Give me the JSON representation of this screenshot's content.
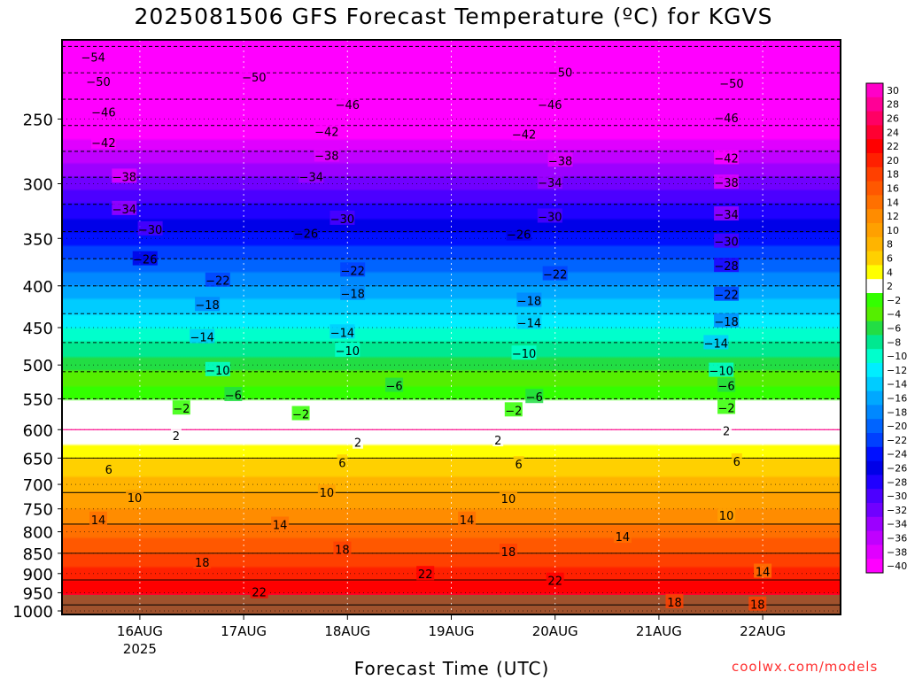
{
  "title": "2025081506 GFS Forecast Temperature (ºC) for KGVS",
  "xlabel": "Forecast Time (UTC)",
  "credit": "coolwx.com/models",
  "chart_data": {
    "type": "heatmap",
    "title": "2025081506 GFS Forecast Temperature (ºC) for KGVS",
    "xlabel": "Forecast Time (UTC)",
    "ylabel": "",
    "x_ticks": [
      {
        "day": 16,
        "label": "16AUG",
        "sublabel": "2025"
      },
      {
        "day": 17,
        "label": "17AUG"
      },
      {
        "day": 18,
        "label": "18AUG"
      },
      {
        "day": 19,
        "label": "19AUG"
      },
      {
        "day": 20,
        "label": "20AUG"
      },
      {
        "day": 21,
        "label": "21AUG"
      },
      {
        "day": 22,
        "label": "22AUG"
      }
    ],
    "x_range_days": [
      15.25,
      22.75
    ],
    "y_scale": "log",
    "y_range_hpa": [
      1010,
      200
    ],
    "y_ticks": [
      250,
      300,
      350,
      400,
      450,
      500,
      550,
      600,
      650,
      700,
      750,
      800,
      850,
      900,
      950,
      1000
    ],
    "colorbar": {
      "labels": [
        "30",
        "28",
        "26",
        "24",
        "22",
        "20",
        "18",
        "16",
        "14",
        "12",
        "10",
        "8",
        "6",
        "4",
        "2",
        "-2",
        "-4",
        "-6",
        "-8",
        "-10",
        "-12",
        "-14",
        "-16",
        "-18",
        "-20",
        "-22",
        "-24",
        "-26",
        "-28",
        "-30",
        "-32",
        "-34",
        "-36",
        "-38",
        "-40"
      ],
      "colors": [
        "#ff00c8",
        "#ff0096",
        "#ff0064",
        "#ff0032",
        "#ff0000",
        "#ff2000",
        "#ff4000",
        "#ff5800",
        "#ff7000",
        "#ff8c00",
        "#ffa000",
        "#ffb400",
        "#ffd000",
        "#ffff00",
        "#ffffff",
        "#33ff00",
        "#55ee00",
        "#22dd44",
        "#00e890",
        "#00ffcc",
        "#00eeff",
        "#00ccff",
        "#00a8ff",
        "#0088ff",
        "#0064ff",
        "#0040ff",
        "#0010ff",
        "#0000e8",
        "#2000ff",
        "#4c00ff",
        "#7000ff",
        "#9c00ff",
        "#c000ff",
        "#e000ff",
        "#ff00ff"
      ]
    },
    "temperature_profile": [
      {
        "hpa": 1000,
        "t": 27
      },
      {
        "hpa": 950,
        "t": 24
      },
      {
        "hpa": 900,
        "t": 21
      },
      {
        "hpa": 850,
        "t": 18
      },
      {
        "hpa": 800,
        "t": 15
      },
      {
        "hpa": 750,
        "t": 12
      },
      {
        "hpa": 700,
        "t": 9
      },
      {
        "hpa": 650,
        "t": 6
      },
      {
        "hpa": 600,
        "t": 2
      },
      {
        "hpa": 550,
        "t": -2
      },
      {
        "hpa": 500,
        "t": -7
      },
      {
        "hpa": 450,
        "t": -12
      },
      {
        "hpa": 400,
        "t": -18
      },
      {
        "hpa": 350,
        "t": -25
      },
      {
        "hpa": 300,
        "t": -33
      },
      {
        "hpa": 250,
        "t": -43
      },
      {
        "hpa": 200,
        "t": -55
      }
    ],
    "contour_labels": [
      {
        "t": -54,
        "day": 15.55,
        "hpa": 210
      },
      {
        "t": -50,
        "day": 15.6,
        "hpa": 225
      },
      {
        "t": -50,
        "day": 17.1,
        "hpa": 222
      },
      {
        "t": -50,
        "day": 20.05,
        "hpa": 219
      },
      {
        "t": -50,
        "day": 21.7,
        "hpa": 226
      },
      {
        "t": -46,
        "day": 15.65,
        "hpa": 245
      },
      {
        "t": -46,
        "day": 18.0,
        "hpa": 240
      },
      {
        "t": -46,
        "day": 19.95,
        "hpa": 240
      },
      {
        "t": -46,
        "day": 21.65,
        "hpa": 249
      },
      {
        "t": -42,
        "day": 15.65,
        "hpa": 267
      },
      {
        "t": -42,
        "day": 17.8,
        "hpa": 259
      },
      {
        "t": -42,
        "day": 19.7,
        "hpa": 261
      },
      {
        "t": -42,
        "day": 21.65,
        "hpa": 279
      },
      {
        "t": -38,
        "day": 15.85,
        "hpa": 294
      },
      {
        "t": -38,
        "day": 17.8,
        "hpa": 277
      },
      {
        "t": -38,
        "day": 20.05,
        "hpa": 281
      },
      {
        "t": -38,
        "day": 21.65,
        "hpa": 299
      },
      {
        "t": -34,
        "day": 15.85,
        "hpa": 322
      },
      {
        "t": -34,
        "day": 17.65,
        "hpa": 294
      },
      {
        "t": -34,
        "day": 19.95,
        "hpa": 299
      },
      {
        "t": -34,
        "day": 21.65,
        "hpa": 327
      },
      {
        "t": -30,
        "day": 16.1,
        "hpa": 341
      },
      {
        "t": -30,
        "day": 17.95,
        "hpa": 331
      },
      {
        "t": -30,
        "day": 19.95,
        "hpa": 329
      },
      {
        "t": -30,
        "day": 21.65,
        "hpa": 353
      },
      {
        "t": -26,
        "day": 16.05,
        "hpa": 371
      },
      {
        "t": -26,
        "day": 17.6,
        "hpa": 345
      },
      {
        "t": -26,
        "day": 19.65,
        "hpa": 346
      },
      {
        "t": -28,
        "day": 21.65,
        "hpa": 378
      },
      {
        "t": -22,
        "day": 16.75,
        "hpa": 394
      },
      {
        "t": -22,
        "day": 18.05,
        "hpa": 383
      },
      {
        "t": -22,
        "day": 20.0,
        "hpa": 387
      },
      {
        "t": -22,
        "day": 21.65,
        "hpa": 410
      },
      {
        "t": -18,
        "day": 16.65,
        "hpa": 422
      },
      {
        "t": -18,
        "day": 18.05,
        "hpa": 409
      },
      {
        "t": -18,
        "day": 19.75,
        "hpa": 417
      },
      {
        "t": -18,
        "day": 21.65,
        "hpa": 442
      },
      {
        "t": -14,
        "day": 16.6,
        "hpa": 462
      },
      {
        "t": -14,
        "day": 17.95,
        "hpa": 456
      },
      {
        "t": -14,
        "day": 19.75,
        "hpa": 444
      },
      {
        "t": -14,
        "day": 21.55,
        "hpa": 470
      },
      {
        "t": -10,
        "day": 16.75,
        "hpa": 507
      },
      {
        "t": -10,
        "day": 18.0,
        "hpa": 480
      },
      {
        "t": -10,
        "day": 19.7,
        "hpa": 484
      },
      {
        "t": -10,
        "day": 21.6,
        "hpa": 508
      },
      {
        "t": -6,
        "day": 16.9,
        "hpa": 544
      },
      {
        "t": -6,
        "day": 18.45,
        "hpa": 530
      },
      {
        "t": -6,
        "day": 19.8,
        "hpa": 547
      },
      {
        "t": -6,
        "day": 21.65,
        "hpa": 530
      },
      {
        "t": -2,
        "day": 16.4,
        "hpa": 565
      },
      {
        "t": -2,
        "day": 17.55,
        "hpa": 574
      },
      {
        "t": -2,
        "day": 19.6,
        "hpa": 568
      },
      {
        "t": -2,
        "day": 21.65,
        "hpa": 564
      },
      {
        "t": 2,
        "day": 16.35,
        "hpa": 610
      },
      {
        "t": 2,
        "day": 18.1,
        "hpa": 622
      },
      {
        "t": 2,
        "day": 19.45,
        "hpa": 618
      },
      {
        "t": 2,
        "day": 21.65,
        "hpa": 602
      },
      {
        "t": 6,
        "day": 15.7,
        "hpa": 671
      },
      {
        "t": 6,
        "day": 17.95,
        "hpa": 658
      },
      {
        "t": 6,
        "day": 19.65,
        "hpa": 661
      },
      {
        "t": 6,
        "day": 21.75,
        "hpa": 656
      },
      {
        "t": 10,
        "day": 15.95,
        "hpa": 727
      },
      {
        "t": 10,
        "day": 17.8,
        "hpa": 716
      },
      {
        "t": 10,
        "day": 19.55,
        "hpa": 728
      },
      {
        "t": 10,
        "day": 21.65,
        "hpa": 764
      },
      {
        "t": 14,
        "day": 15.6,
        "hpa": 773
      },
      {
        "t": 14,
        "day": 17.35,
        "hpa": 784
      },
      {
        "t": 14,
        "day": 19.15,
        "hpa": 773
      },
      {
        "t": 14,
        "day": 20.65,
        "hpa": 811
      },
      {
        "t": 14,
        "day": 22.0,
        "hpa": 895
      },
      {
        "t": 18,
        "day": 16.6,
        "hpa": 872
      },
      {
        "t": 18,
        "day": 17.95,
        "hpa": 841
      },
      {
        "t": 18,
        "day": 19.55,
        "hpa": 846
      },
      {
        "t": 18,
        "day": 21.15,
        "hpa": 975
      },
      {
        "t": 18,
        "day": 21.95,
        "hpa": 982
      },
      {
        "t": 22,
        "day": 17.15,
        "hpa": 948
      },
      {
        "t": 22,
        "day": 18.75,
        "hpa": 901
      },
      {
        "t": 22,
        "day": 20.0,
        "hpa": 918
      }
    ]
  }
}
